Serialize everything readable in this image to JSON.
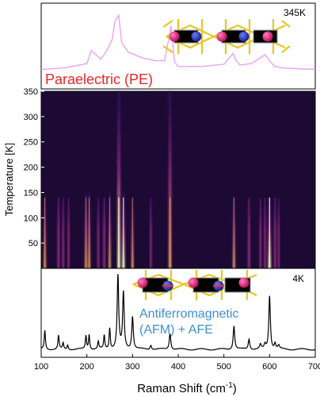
{
  "chart_data": [
    {
      "panel": "top",
      "type": "line",
      "temperature_label": "345K",
      "phase_label": "Paraelectric (PE)",
      "colors": {
        "line": "#e9a3f3",
        "phase_label": "#e8262a"
      },
      "x": [
        100,
        150,
        200,
        210,
        230,
        240,
        255,
        262,
        270,
        276,
        290,
        320,
        350,
        370,
        380,
        384,
        392,
        400,
        450,
        500,
        520,
        527,
        535,
        560,
        575,
        590,
        602,
        612,
        630,
        660,
        700
      ],
      "y": [
        0.18,
        0.2,
        0.26,
        0.44,
        0.32,
        0.4,
        0.58,
        0.85,
        0.92,
        0.55,
        0.42,
        0.34,
        0.3,
        0.3,
        0.62,
        0.78,
        0.28,
        0.22,
        0.22,
        0.25,
        0.4,
        0.3,
        0.24,
        0.26,
        0.32,
        0.38,
        0.28,
        0.22,
        0.2,
        0.19,
        0.18
      ]
    },
    {
      "panel": "middle",
      "type": "heatmap",
      "ylabel": "Temperature [K]",
      "ylim": [
        0,
        350
      ],
      "yticks": [
        50,
        100,
        150,
        200,
        250,
        300,
        350
      ],
      "colors": {
        "background": "#1c0a34",
        "low": "#3b0f70",
        "mid": "#9d2f86",
        "high": "#fcfdbf"
      },
      "bands": [
        {
          "x": 108,
          "t_max": 140,
          "intensity": 0.6
        },
        {
          "x": 138,
          "t_max": 140,
          "intensity": 0.5
        },
        {
          "x": 148,
          "t_max": 140,
          "intensity": 0.35
        },
        {
          "x": 160,
          "t_max": 140,
          "intensity": 0.35
        },
        {
          "x": 198,
          "t_max": 150,
          "intensity": 0.55
        },
        {
          "x": 205,
          "t_max": 150,
          "intensity": 0.6
        },
        {
          "x": 225,
          "t_max": 140,
          "intensity": 0.35
        },
        {
          "x": 238,
          "t_max": 140,
          "intensity": 0.45
        },
        {
          "x": 250,
          "t_max": 150,
          "intensity": 0.55
        },
        {
          "x": 270,
          "t_max": 350,
          "intensity": 0.95
        },
        {
          "x": 280,
          "t_max": 150,
          "intensity": 0.85
        },
        {
          "x": 300,
          "t_max": 140,
          "intensity": 0.55
        },
        {
          "x": 340,
          "t_max": 140,
          "intensity": 0.3
        },
        {
          "x": 382,
          "t_max": 350,
          "intensity": 0.8
        },
        {
          "x": 522,
          "t_max": 140,
          "intensity": 0.6
        },
        {
          "x": 555,
          "t_max": 140,
          "intensity": 0.5
        },
        {
          "x": 580,
          "t_max": 140,
          "intensity": 0.35
        },
        {
          "x": 590,
          "t_max": 140,
          "intensity": 0.35
        },
        {
          "x": 600,
          "t_max": 140,
          "intensity": 0.9
        },
        {
          "x": 612,
          "t_max": 140,
          "intensity": 0.4
        },
        {
          "x": 620,
          "t_max": 140,
          "intensity": 0.3
        }
      ]
    },
    {
      "panel": "bottom",
      "type": "line",
      "temperature_label": "4K",
      "phase_label_line1": "Antiferromagnetic",
      "phase_label_line2": "(AFM) + AFE",
      "xlabel": "Raman Shift (cm",
      "xlabel_sup": "-1",
      "xlabel_end": ")",
      "xlim": [
        100,
        700
      ],
      "xticks": [
        100,
        200,
        300,
        400,
        500,
        600,
        700
      ],
      "colors": {
        "line": "#000000",
        "phase_label": "#3f8fd6"
      },
      "peaks": [
        {
          "x": 108,
          "h": 0.25,
          "w": 1.5
        },
        {
          "x": 138,
          "h": 0.18,
          "w": 1.5
        },
        {
          "x": 148,
          "h": 0.08,
          "w": 1.5
        },
        {
          "x": 158,
          "h": 0.06,
          "w": 1.5
        },
        {
          "x": 198,
          "h": 0.18,
          "w": 1.5
        },
        {
          "x": 205,
          "h": 0.2,
          "w": 1.5
        },
        {
          "x": 225,
          "h": 0.1,
          "w": 1.5
        },
        {
          "x": 238,
          "h": 0.18,
          "w": 1.5
        },
        {
          "x": 250,
          "h": 0.28,
          "w": 1.5
        },
        {
          "x": 268,
          "h": 0.98,
          "w": 2
        },
        {
          "x": 280,
          "h": 0.75,
          "w": 2
        },
        {
          "x": 300,
          "h": 0.44,
          "w": 2
        },
        {
          "x": 340,
          "h": 0.06,
          "w": 2
        },
        {
          "x": 382,
          "h": 0.22,
          "w": 2
        },
        {
          "x": 522,
          "h": 0.32,
          "w": 2
        },
        {
          "x": 555,
          "h": 0.14,
          "w": 2
        },
        {
          "x": 580,
          "h": 0.06,
          "w": 2
        },
        {
          "x": 590,
          "h": 0.06,
          "w": 2
        },
        {
          "x": 600,
          "h": 0.72,
          "w": 2
        },
        {
          "x": 612,
          "h": 0.08,
          "w": 2
        },
        {
          "x": 620,
          "h": 0.05,
          "w": 2
        }
      ]
    }
  ],
  "crystal_icons": [
    {
      "name": "crystal-structure-top",
      "atom_colors": {
        "magenta": "#e0207a",
        "blue": "#2231a8",
        "gold": "#e8c720",
        "gray": "#8a8a8a"
      }
    },
    {
      "name": "crystal-structure-bottom",
      "atom_colors": {
        "magenta": "#e0207a",
        "blue": "#2231a8",
        "gold": "#e8c720",
        "gray": "#8a8a8a"
      }
    }
  ]
}
